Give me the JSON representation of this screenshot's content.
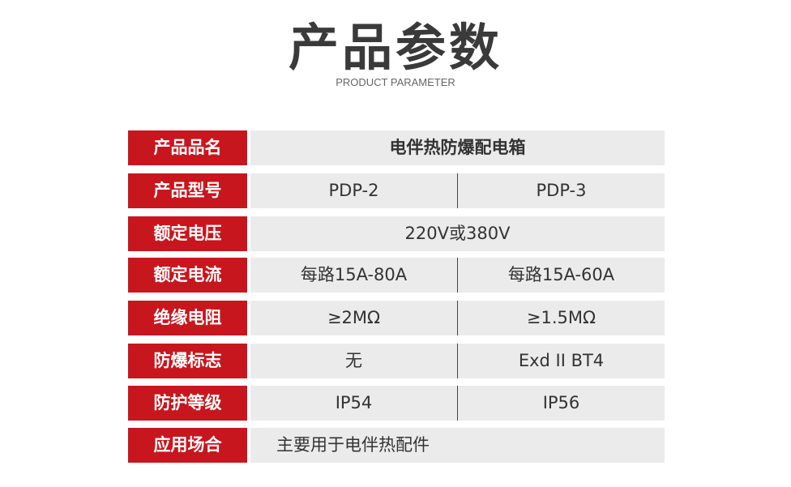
{
  "header": {
    "title": "产品参数",
    "subtitle": "PRODUCT PARAMETER"
  },
  "table": {
    "rows": [
      {
        "label": "产品品名",
        "values": [
          "电伴热防爆配电箱"
        ]
      },
      {
        "label": "产品型号",
        "values": [
          "PDP-2",
          "PDP-3"
        ]
      },
      {
        "label": "额定电压",
        "values": [
          "220V或380V"
        ]
      },
      {
        "label": "额定电流",
        "values": [
          "每路15A-80A",
          "每路15A-60A"
        ]
      },
      {
        "label": "绝缘电阻",
        "values": [
          "≥2MΩ",
          "≥1.5MΩ"
        ]
      },
      {
        "label": "防爆标志",
        "values": [
          "无",
          "Exd II BT4"
        ]
      },
      {
        "label": "防护等级",
        "values": [
          "IP54",
          "IP56"
        ]
      },
      {
        "label": "应用场合",
        "values": [
          "主要用于电伴热配件"
        ]
      }
    ]
  }
}
